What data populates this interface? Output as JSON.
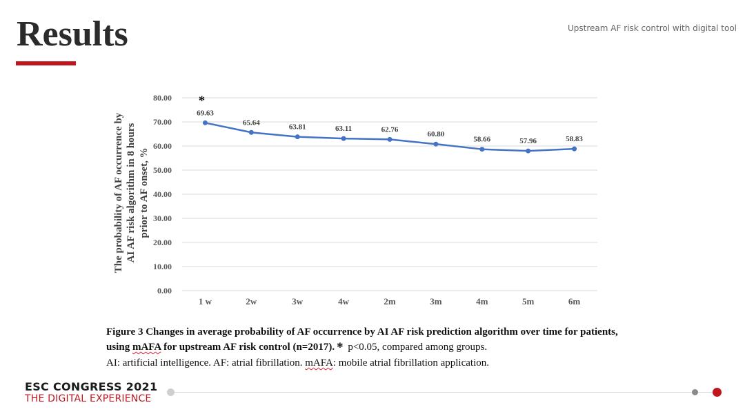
{
  "slide": {
    "title": "Results",
    "header_subtitle": "Upstream AF risk control with digital tool"
  },
  "chart_data": {
    "type": "line",
    "categories": [
      "1 w",
      "2w",
      "3w",
      "4w",
      "2m",
      "3m",
      "4m",
      "5m",
      "6m"
    ],
    "series": [
      {
        "values": [
          69.63,
          65.64,
          63.81,
          63.11,
          62.76,
          60.8,
          58.66,
          57.96,
          58.83
        ]
      }
    ],
    "data_labels": [
      "69.63",
      "65.64",
      "63.81",
      "63.11",
      "62.76",
      "60.80",
      "58.66",
      "57.96",
      "58.83"
    ],
    "ylabel_lines": [
      "The probability of AF occurrence by",
      "AI AF risk algorithm in 8 hours",
      "prior  to AF onset, %"
    ],
    "ylim": [
      0,
      80
    ],
    "yticks": [
      "0.00",
      "10.00",
      "20.00",
      "30.00",
      "40.00",
      "50.00",
      "60.00",
      "70.00",
      "80.00"
    ],
    "grid": true,
    "line_color": "#4472c4",
    "annotation": {
      "text": "*",
      "category": "1 w"
    }
  },
  "caption": {
    "line1": "Figure 3 Changes in average probability of  AF occurrence by AI AF risk prediction algorithm over time for patients,",
    "line2_prefix": "using ",
    "line2_mafa": "mAFA",
    "line2_bold_rest": " for upstream AF risk control (n=2017).",
    "line2_star": "*",
    "line2_plain": " p<0.05, compared among groups.",
    "line3_prefix": "AI: artificial intelligence. AF: atrial fibrillation. ",
    "line3_mafa": "mAFA",
    "line3_rest": ": mobile atrial fibrillation application."
  },
  "footer": {
    "line1": "ESC CONGRESS 2021",
    "line2": "THE DIGITAL EXPERIENCE",
    "accent_color": "#c0171f"
  }
}
